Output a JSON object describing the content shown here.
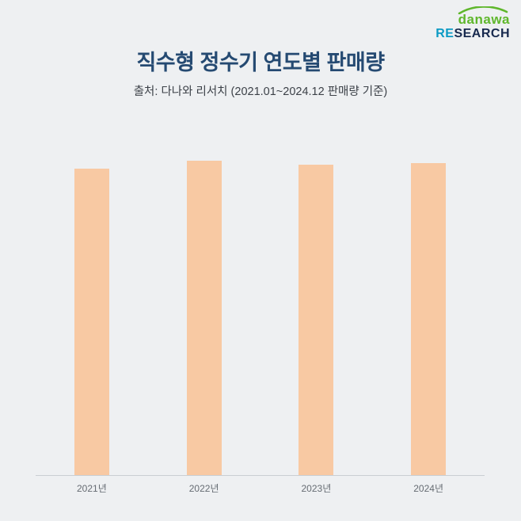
{
  "logo": {
    "brand": "danawa",
    "research_re": "RE",
    "research_rest": "SEARCH"
  },
  "header": {
    "title": "직수형 정수기 연도별 판매량",
    "subtitle": "출처: 다나와 리서치 (2021.01~2024.12 판매량 기준)"
  },
  "chart_data": {
    "type": "bar",
    "categories": [
      "2021년",
      "2022년",
      "2023년",
      "2024년"
    ],
    "values": [
      97.5,
      100,
      98.8,
      99.3
    ],
    "title": "직수형 정수기 연도별 판매량",
    "xlabel": "",
    "ylabel": "",
    "ylim": [
      0,
      100
    ],
    "grid": false,
    "legend": false,
    "y_axis_labels_visible": false,
    "bar_color": "#f8c9a3",
    "axis_line_color": "#c9ced3"
  },
  "colors": {
    "background": "#eef0f2",
    "title_text": "#254a72",
    "subtitle_text": "#3c4148",
    "logo_green": "#5fb72c",
    "logo_re_blue": "#0b9ac4",
    "logo_search_navy": "#17294e",
    "x_label_text": "#666c73"
  }
}
